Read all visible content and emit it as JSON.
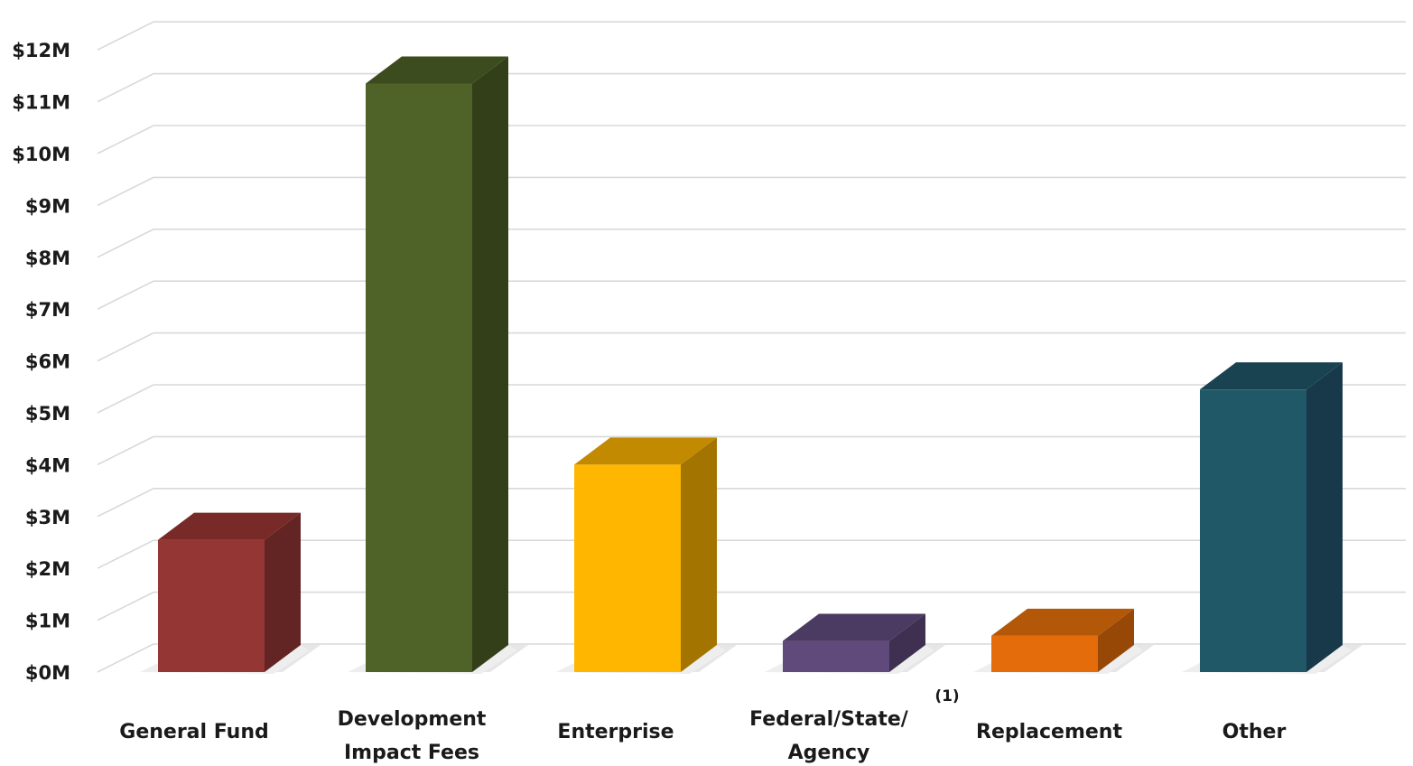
{
  "chart_data": {
    "type": "bar",
    "title": "",
    "xlabel": "",
    "ylabel": "",
    "ylim": [
      0,
      12
    ],
    "y_ticks": [
      "$0M",
      "$1M",
      "$2M",
      "$3M",
      "$4M",
      "$5M",
      "$6M",
      "$7M",
      "$8M",
      "$9M",
      "$10M",
      "$11M",
      "$12M"
    ],
    "categories": [
      [
        "General Fund"
      ],
      [
        "Development",
        "Impact Fees"
      ],
      [
        "Enterprise"
      ],
      [
        "Federal/State/",
        "Agency"
      ],
      [
        "Replacement"
      ],
      [
        "Other"
      ]
    ],
    "category_note": "(1)",
    "values": [
      2.55,
      11.35,
      4.0,
      0.6,
      0.7,
      5.45
    ],
    "colors": [
      "#943634",
      "#4f6228",
      "#ffb600",
      "#604a7b",
      "#e46c0a",
      "#215868"
    ],
    "side_colors": [
      "#632523",
      "#333f19",
      "#a37400",
      "#3f3051",
      "#974806",
      "#17394a"
    ],
    "top_colors": [
      "#772a28",
      "#3d4c1e",
      "#c18a00",
      "#4b3a61",
      "#b35708",
      "#1a4352"
    ],
    "grid": true,
    "legend": "none"
  }
}
